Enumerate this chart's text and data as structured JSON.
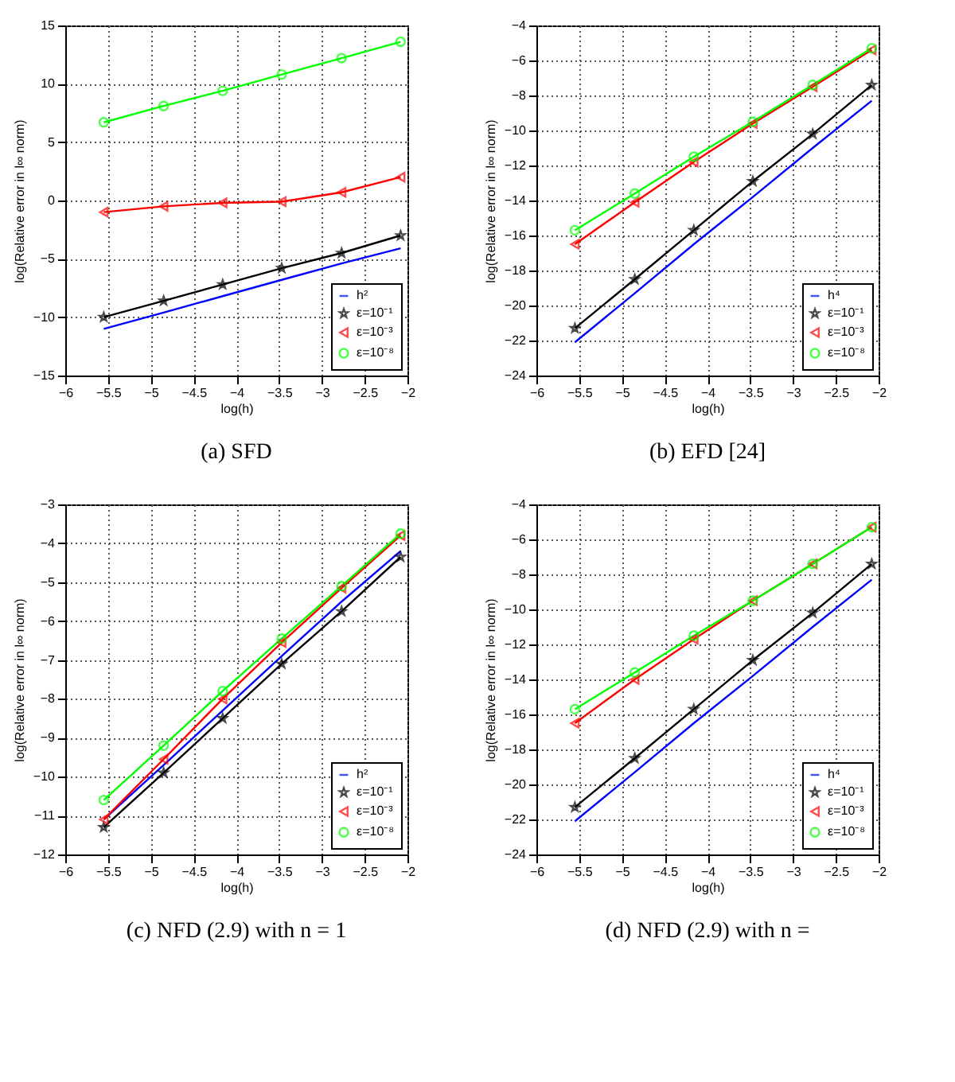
{
  "chart_data": [
    {
      "type": "line",
      "title": "(a) SFD",
      "xlabel": "log(h)",
      "ylabel": "log(Relative error in l∞ norm)",
      "x": [
        -5.55,
        -4.85,
        -4.16,
        -3.47,
        -2.77,
        -2.08
      ],
      "xlim": [
        -6,
        -2
      ],
      "xticks": [
        -6,
        -5.5,
        -5,
        -4.5,
        -4,
        -3.5,
        -3,
        -2.5,
        -2
      ],
      "ylim": [
        -15,
        15
      ],
      "yticks": [
        -15,
        -10,
        -5,
        0,
        5,
        10,
        15
      ],
      "grid": true,
      "legend": "bottom right",
      "line_style": "solid",
      "series": [
        {
          "name": "h²",
          "color": "#0000ff",
          "marker": "none",
          "values": [
            -11.0,
            -9.6,
            -8.2,
            -6.8,
            -5.4,
            -4.1
          ]
        },
        {
          "name": "ε=10⁻¹",
          "color": "#000000",
          "marker": "star",
          "values": [
            -10.0,
            -8.6,
            -7.2,
            -5.8,
            -4.5,
            -3.0
          ]
        },
        {
          "name": "ε=10⁻³",
          "color": "#ff0000",
          "marker": "triangle",
          "values": [
            -1.0,
            -0.5,
            -0.2,
            -0.1,
            0.7,
            2.0
          ]
        },
        {
          "name": "ε=10⁻⁸",
          "color": "#00ff00",
          "marker": "circle",
          "values": [
            6.7,
            8.1,
            9.4,
            10.8,
            12.2,
            13.6
          ]
        }
      ]
    },
    {
      "type": "line",
      "title": "(b) EFD [24]",
      "xlabel": "log(h)",
      "ylabel": "log(Relative error in l∞ norm)",
      "x": [
        -5.55,
        -4.85,
        -4.16,
        -3.47,
        -2.77,
        -2.08
      ],
      "xlim": [
        -6,
        -2
      ],
      "xticks": [
        -6,
        -5.5,
        -5,
        -4.5,
        -4,
        -3.5,
        -3,
        -2.5,
        -2
      ],
      "ylim": [
        -24,
        -4
      ],
      "yticks": [
        -24,
        -22,
        -20,
        -18,
        -16,
        -14,
        -12,
        -10,
        -8,
        -6,
        -4
      ],
      "grid": true,
      "legend": "bottom right",
      "line_style": "solid",
      "series": [
        {
          "name": "h⁴",
          "color": "#0000ff",
          "marker": "none",
          "values": [
            -22.1,
            -19.3,
            -16.5,
            -13.8,
            -11.0,
            -8.3
          ]
        },
        {
          "name": "ε=10⁻¹",
          "color": "#000000",
          "marker": "star",
          "values": [
            -21.3,
            -18.5,
            -15.7,
            -12.9,
            -10.2,
            -7.4
          ]
        },
        {
          "name": "ε=10⁻³",
          "color": "#ff0000",
          "marker": "triangle",
          "values": [
            -16.5,
            -14.1,
            -11.8,
            -9.6,
            -7.5,
            -5.4
          ]
        },
        {
          "name": "ε=10⁻⁸",
          "color": "#00ff00",
          "marker": "circle",
          "values": [
            -15.7,
            -13.6,
            -11.5,
            -9.5,
            -7.4,
            -5.3
          ]
        }
      ]
    },
    {
      "type": "line",
      "title": "(c) NFD (2.9) with n = 1",
      "xlabel": "log(h)",
      "ylabel": "log(Relative error in l∞ norm)",
      "x": [
        -5.55,
        -4.85,
        -4.16,
        -3.47,
        -2.77,
        -2.08
      ],
      "xlim": [
        -6,
        -2
      ],
      "xticks": [
        -6,
        -5.5,
        -5,
        -4.5,
        -4,
        -3.5,
        -3,
        -2.5,
        -2
      ],
      "ylim": [
        -12,
        -3
      ],
      "yticks": [
        -12,
        -11,
        -10,
        -9,
        -8,
        -7,
        -6,
        -5,
        -4,
        -3
      ],
      "grid": true,
      "legend": "bottom right",
      "line_style": "solid",
      "series": [
        {
          "name": "h²",
          "color": "#0000ff",
          "marker": "none",
          "values": [
            -11.1,
            -9.7,
            -8.3,
            -6.9,
            -5.5,
            -4.2
          ]
        },
        {
          "name": "ε=10⁻¹",
          "color": "#000000",
          "marker": "star",
          "values": [
            -11.3,
            -9.9,
            -8.5,
            -7.1,
            -5.75,
            -4.35
          ]
        },
        {
          "name": "ε=10⁻³",
          "color": "#ff0000",
          "marker": "triangle",
          "values": [
            -11.1,
            -9.55,
            -8.0,
            -6.55,
            -5.15,
            -3.8
          ]
        },
        {
          "name": "ε=10⁻⁸",
          "color": "#00ff00",
          "marker": "circle",
          "values": [
            -10.6,
            -9.2,
            -7.8,
            -6.45,
            -5.1,
            -3.75
          ]
        }
      ]
    },
    {
      "type": "line",
      "title": "(d) NFD (2.9) with n =",
      "xlabel": "log(h)",
      "ylabel": "log(Relative error in l∞ norm)",
      "x": [
        -5.55,
        -4.85,
        -4.16,
        -3.47,
        -2.77,
        -2.08
      ],
      "xlim": [
        -6,
        -2
      ],
      "xticks": [
        -6,
        -5.5,
        -5,
        -4.5,
        -4,
        -3.5,
        -3,
        -2.5,
        -2
      ],
      "ylim": [
        -24,
        -4
      ],
      "yticks": [
        -24,
        -22,
        -20,
        -18,
        -16,
        -14,
        -12,
        -10,
        -8,
        -6,
        -4
      ],
      "grid": true,
      "legend": "bottom right",
      "line_style": "solid",
      "series": [
        {
          "name": "h⁴",
          "color": "#0000ff",
          "marker": "none",
          "values": [
            -22.1,
            -19.3,
            -16.5,
            -13.8,
            -11.0,
            -8.3
          ]
        },
        {
          "name": "ε=10⁻¹",
          "color": "#000000",
          "marker": "star",
          "values": [
            -21.3,
            -18.5,
            -15.7,
            -12.9,
            -10.2,
            -7.4
          ]
        },
        {
          "name": "ε=10⁻³",
          "color": "#ff0000",
          "marker": "triangle",
          "values": [
            -16.5,
            -14.0,
            -11.7,
            -9.5,
            -7.4,
            -5.3
          ]
        },
        {
          "name": "ε=10⁻⁸",
          "color": "#00ff00",
          "marker": "circle",
          "values": [
            -15.7,
            -13.6,
            -11.5,
            -9.5,
            -7.4,
            -5.3
          ]
        }
      ]
    }
  ]
}
